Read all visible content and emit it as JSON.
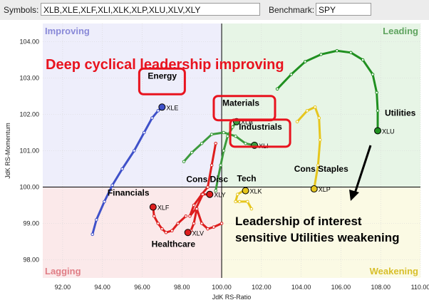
{
  "toolbar": {
    "symbols_label": "Symbols:",
    "symbols_value": "XLB,XLE,XLF,XLI,XLK,XLP,XLU,XLV,XLY",
    "benchmark_label": "Benchmark:",
    "benchmark_value": "SPY"
  },
  "colors": {
    "improving": "#eeeefb",
    "leading": "#e7f5e6",
    "lagging": "#fbe9ea",
    "weakening": "#fbfae4",
    "improving_text": "#8989d8",
    "leading_text": "#5ea35e",
    "lagging_text": "#e07e86",
    "weakening_text": "#d8bf2a",
    "headline": "#e8131e",
    "box": "#e8131e"
  },
  "chart_data": {
    "type": "scatter",
    "xlabel": "JdK RS-Ratio",
    "ylabel": "JdK RS-Momentum",
    "xlim": [
      91,
      110
    ],
    "ylim": [
      97.5,
      104.5
    ],
    "x_ticks": [
      "92.00",
      "94.00",
      "96.00",
      "98.00",
      "100.00",
      "102.00",
      "104.00",
      "106.00",
      "108.00",
      "110.00"
    ],
    "y_ticks": [
      "98.00",
      "99.00",
      "100.00",
      "101.00",
      "102.00",
      "103.00",
      "104.00"
    ],
    "quadrants": {
      "improving": "Improving",
      "leading": "Leading",
      "lagging": "Lagging",
      "weakening": "Weakening"
    },
    "annotations": {
      "headline": "Deep cyclical leadership improving",
      "note_line1": "Leadership of interest",
      "note_line2": "sensitive Utilities weakening"
    },
    "series": [
      {
        "symbol": "XLE",
        "sector": "Energy",
        "color": "#3f51c9",
        "boxed": true,
        "points": [
          [
            93.5,
            98.7
          ],
          [
            93.7,
            99.1
          ],
          [
            94.1,
            99.6
          ],
          [
            94.5,
            100.05
          ],
          [
            95.0,
            100.5
          ],
          [
            95.6,
            101.0
          ],
          [
            96.1,
            101.5
          ],
          [
            96.5,
            101.9
          ],
          [
            96.8,
            102.1
          ],
          [
            97.0,
            102.2
          ]
        ]
      },
      {
        "symbol": "XLB",
        "sector": "Materials",
        "color": "#3c9a3c",
        "boxed": true,
        "points": [
          [
            99.7,
            99.9
          ],
          [
            99.8,
            100.2
          ],
          [
            99.95,
            100.6
          ],
          [
            100.1,
            101.0
          ],
          [
            100.3,
            101.4
          ],
          [
            100.55,
            101.65
          ],
          [
            100.75,
            101.8
          ]
        ]
      },
      {
        "symbol": "XLI",
        "sector": "Industrials",
        "color": "#3c9a3c",
        "boxed": true,
        "points": [
          [
            98.1,
            100.7
          ],
          [
            98.5,
            100.95
          ],
          [
            99.0,
            101.2
          ],
          [
            99.5,
            101.45
          ],
          [
            100.1,
            101.5
          ],
          [
            100.7,
            101.4
          ],
          [
            101.2,
            101.2
          ],
          [
            101.65,
            101.15
          ]
        ]
      },
      {
        "symbol": "XLU",
        "sector": "Utilities",
        "color": "#209020",
        "boxed": false,
        "points": [
          [
            102.8,
            102.7
          ],
          [
            103.5,
            103.1
          ],
          [
            104.2,
            103.45
          ],
          [
            105.0,
            103.65
          ],
          [
            105.8,
            103.75
          ],
          [
            106.5,
            103.7
          ],
          [
            107.1,
            103.5
          ],
          [
            107.6,
            103.1
          ],
          [
            107.8,
            102.6
          ],
          [
            107.85,
            102.1
          ],
          [
            107.85,
            101.55
          ]
        ]
      },
      {
        "symbol": "XLP",
        "sector": "Cons Staples",
        "color": "#e6c61e",
        "boxed": false,
        "points": [
          [
            103.8,
            101.8
          ],
          [
            104.3,
            102.1
          ],
          [
            104.7,
            102.2
          ],
          [
            104.9,
            101.9
          ],
          [
            104.95,
            101.3
          ],
          [
            104.85,
            100.6
          ],
          [
            104.65,
            99.95
          ]
        ]
      },
      {
        "symbol": "XLK",
        "sector": "Tech",
        "color": "#e6c61e",
        "boxed": false,
        "points": [
          [
            101.5,
            99.4
          ],
          [
            101.3,
            99.6
          ],
          [
            100.9,
            99.6
          ],
          [
            100.7,
            99.6
          ],
          [
            100.8,
            99.8
          ],
          [
            101.1,
            99.9
          ],
          [
            101.2,
            99.9
          ]
        ]
      },
      {
        "symbol": "XLY",
        "sector": "Cons Disc",
        "color": "#dd1e1e",
        "boxed": false,
        "points": [
          [
            99.7,
            101.2
          ],
          [
            99.5,
            100.6
          ],
          [
            99.3,
            100.0
          ],
          [
            99.0,
            99.8
          ],
          [
            98.6,
            99.5
          ],
          [
            98.4,
            99.2
          ],
          [
            98.7,
            99.4
          ],
          [
            99.05,
            99.8
          ],
          [
            99.4,
            99.8
          ]
        ]
      },
      {
        "symbol": "XLV",
        "sector": "Healthcare",
        "color": "#dd1e1e",
        "boxed": false,
        "points": [
          [
            100.0,
            99.0
          ],
          [
            99.6,
            98.9
          ],
          [
            99.3,
            98.85
          ],
          [
            99.0,
            99.0
          ],
          [
            98.75,
            99.4
          ],
          [
            98.6,
            99.0
          ],
          [
            98.45,
            98.8
          ],
          [
            98.3,
            98.75
          ]
        ]
      },
      {
        "symbol": "XLF",
        "sector": "Financials",
        "color": "#dd1e1e",
        "boxed": false,
        "points": [
          [
            98.2,
            99.2
          ],
          [
            97.8,
            99.0
          ],
          [
            97.5,
            98.8
          ],
          [
            97.2,
            98.75
          ],
          [
            97.0,
            98.85
          ],
          [
            96.8,
            99.0
          ],
          [
            96.6,
            99.2
          ],
          [
            96.55,
            99.45
          ]
        ]
      }
    ]
  }
}
